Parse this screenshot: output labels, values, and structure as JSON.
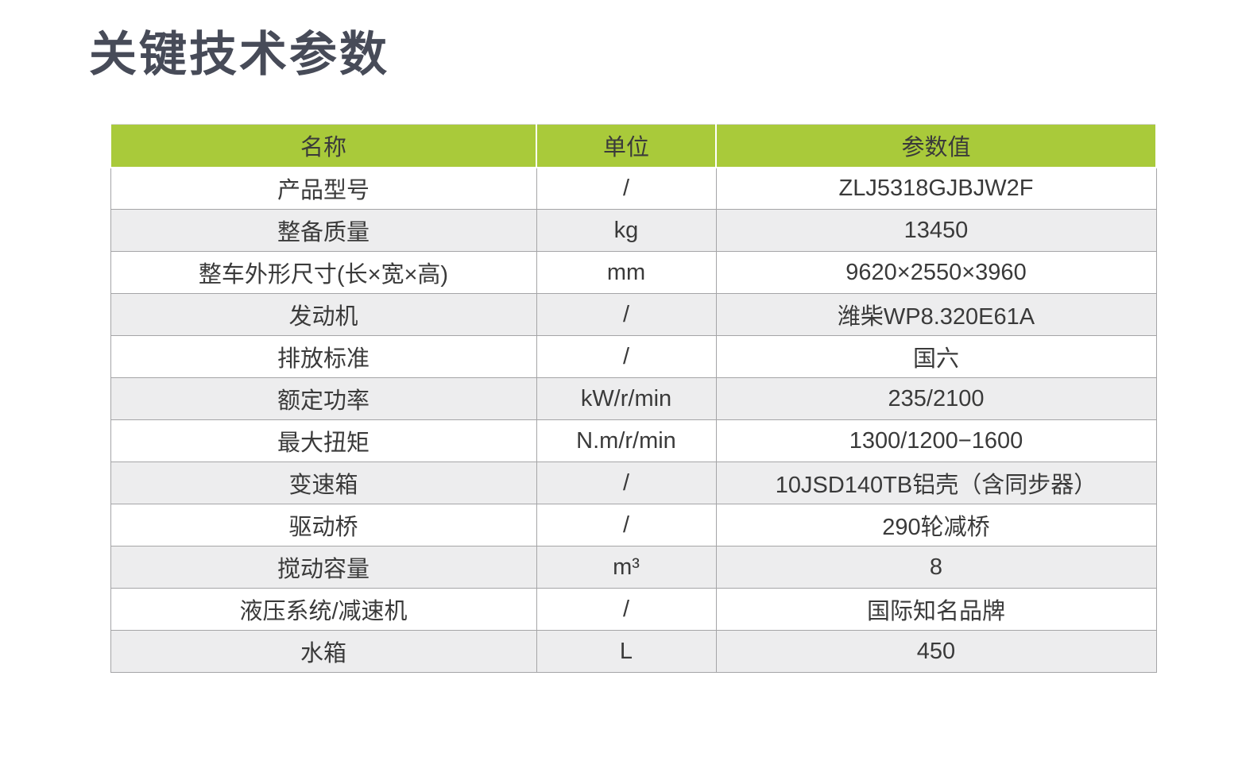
{
  "page": {
    "title": "关键技术参数"
  },
  "table": {
    "headers": [
      {
        "key": "name",
        "label": "名称"
      },
      {
        "key": "unit",
        "label": "单位"
      },
      {
        "key": "value",
        "label": "参数值"
      }
    ],
    "rows": [
      {
        "name": "产品型号",
        "unit": "/",
        "value": "ZLJ5318GJBJW2F"
      },
      {
        "name": "整备质量",
        "unit": "kg",
        "value": "13450"
      },
      {
        "name": "整车外形尺寸(长×宽×高)",
        "unit": "mm",
        "value": "9620×2550×3960"
      },
      {
        "name": "发动机",
        "unit": "/",
        "value": "潍柴WP8.320E61A"
      },
      {
        "name": "排放标准",
        "unit": "/",
        "value": "国六"
      },
      {
        "name": "额定功率",
        "unit": "kW/r/min",
        "value": "235/2100"
      },
      {
        "name": "最大扭矩",
        "unit": "N.m/r/min",
        "value": "1300/1200−1600"
      },
      {
        "name": "变速箱",
        "unit": "/",
        "value": "10JSD140TB铝壳（含同步器）"
      },
      {
        "name": "驱动桥",
        "unit": "/",
        "value": "290轮减桥"
      },
      {
        "name": "搅动容量",
        "unit": "m³",
        "value": "8"
      },
      {
        "name": "液压系统/减速机",
        "unit": "/",
        "value": "国际知名品牌"
      },
      {
        "name": "水箱",
        "unit": "L",
        "value": "450"
      }
    ]
  },
  "colors": {
    "header_bg": "#a9ca3a",
    "row_bg": "#ffffff",
    "row_alt_bg": "#ededee",
    "border": "#a5a5a7",
    "title_text": "#474b58",
    "cell_text": "#3a3a3a"
  }
}
